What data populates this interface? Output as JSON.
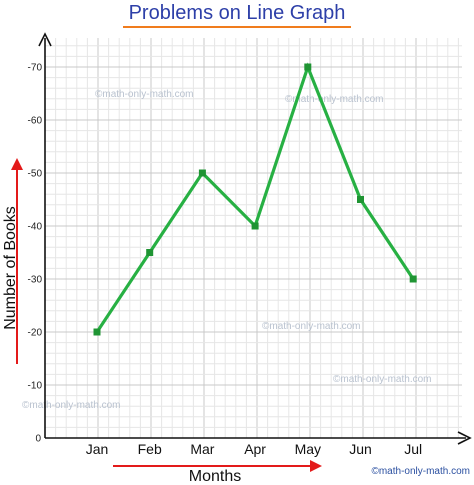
{
  "chart_data": {
    "type": "line",
    "title": "Problems on Line Graph",
    "xlabel": "Months",
    "ylabel": "Number of Books",
    "categories": [
      "Jan",
      "Feb",
      "Mar",
      "Apr",
      "May",
      "Jun",
      "Jul"
    ],
    "series": [
      {
        "values": [
          20,
          35,
          50,
          40,
          70,
          45,
          30
        ]
      }
    ],
    "ylim": [
      0,
      70
    ],
    "yticks": [
      0,
      10,
      20,
      30,
      40,
      50,
      60,
      70
    ],
    "ytick_labels": [
      "0",
      "-10",
      "-20",
      "-30",
      "-40",
      "-50",
      "-60",
      "-70"
    ],
    "grid": true,
    "colors": {
      "line": "#27b043",
      "marker": "#1f9433",
      "title": "#2d3fa8",
      "title_underline": "#f07c1d",
      "axis_arrow": "#e31a1a",
      "grid_major": "#c9c9c9",
      "grid_minor": "#e6e6e6"
    }
  },
  "watermark": {
    "text": "©math-only-math.com"
  },
  "credit": {
    "text": "©math-only-math.com"
  }
}
